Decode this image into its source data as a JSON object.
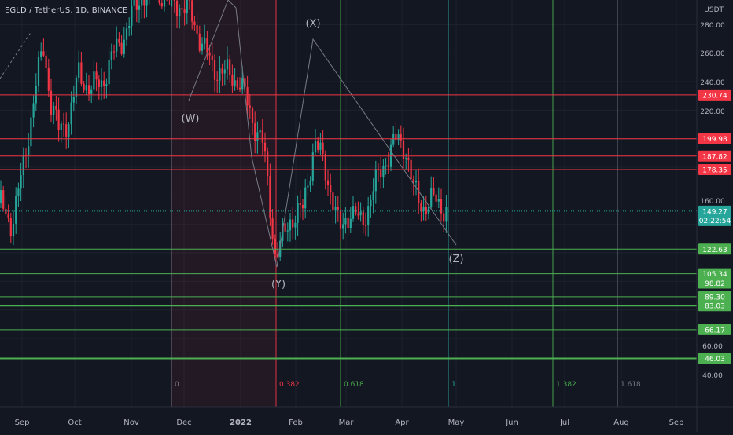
{
  "symbol_title": "EGLD / TetherUS, 1D, BINANCE",
  "currency": "USDT",
  "colors": {
    "background": "#131722",
    "grid": "#1e222d",
    "red": "#f23645",
    "green": "#4caf50",
    "teal": "#26a69a",
    "text": "#b2b5be",
    "wave_line": "#787b86"
  },
  "chart_data": {
    "type": "candlestick",
    "title": "EGLD / TetherUS, 1D, BINANCE",
    "ylim": [
      30,
      300
    ],
    "y_ticks": [
      "280.00",
      "260.00",
      "240.00",
      "220.00",
      "160.00",
      "60.00",
      "40.00"
    ],
    "x_ticks": [
      "Sep",
      "Oct",
      "Nov",
      "Dec",
      "2022",
      "Feb",
      "Mar",
      "Apr",
      "May",
      "Jun",
      "Jul",
      "Aug",
      "Sep"
    ],
    "resistance_levels": [
      "230.74",
      "199.98",
      "187.82",
      "178.35"
    ],
    "support_levels": [
      "122.63",
      "105.34",
      "98.82",
      "89.30",
      "83.03",
      "66.17",
      "46.03"
    ],
    "current_price": "149.27",
    "countdown": "02:22:54",
    "fib_levels": [
      "0",
      "0.382",
      "0.618",
      "1",
      "1.382",
      "1.618"
    ],
    "wave_labels": [
      "(W)",
      "(X)",
      "(Y)",
      "(Z)"
    ]
  }
}
